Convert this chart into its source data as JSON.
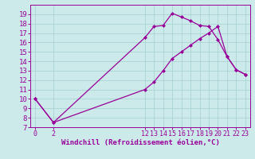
{
  "line1_x": [
    0,
    2,
    12,
    13,
    14,
    15,
    16,
    17,
    18,
    19,
    20,
    21,
    22,
    23
  ],
  "line1_y": [
    10,
    7.5,
    16.5,
    17.7,
    17.8,
    19.1,
    18.7,
    18.3,
    17.8,
    17.7,
    16.3,
    14.5,
    13.1,
    12.6
  ],
  "line2_x": [
    0,
    2,
    12,
    13,
    14,
    15,
    16,
    17,
    18,
    19,
    20,
    21,
    22,
    23
  ],
  "line2_y": [
    10,
    7.5,
    11.0,
    11.8,
    13.0,
    14.3,
    15.0,
    15.7,
    16.4,
    17.0,
    17.7,
    14.5,
    13.1,
    12.6
  ],
  "line_color": "#990099",
  "marker": "D",
  "marker_size": 2,
  "bg_color": "#cceaea",
  "grid_color": "#aad4d4",
  "axis_color": "#990099",
  "tick_color": "#990099",
  "xlabel": "Windchill (Refroidissement éolien,°C)",
  "ylim": [
    7,
    20
  ],
  "xlim": [
    -0.5,
    23.5
  ],
  "yticks": [
    7,
    8,
    9,
    10,
    11,
    12,
    13,
    14,
    15,
    16,
    17,
    18,
    19
  ],
  "xticks": [
    0,
    2,
    12,
    13,
    14,
    15,
    16,
    17,
    18,
    19,
    20,
    21,
    22,
    23
  ],
  "font_size": 6.5
}
